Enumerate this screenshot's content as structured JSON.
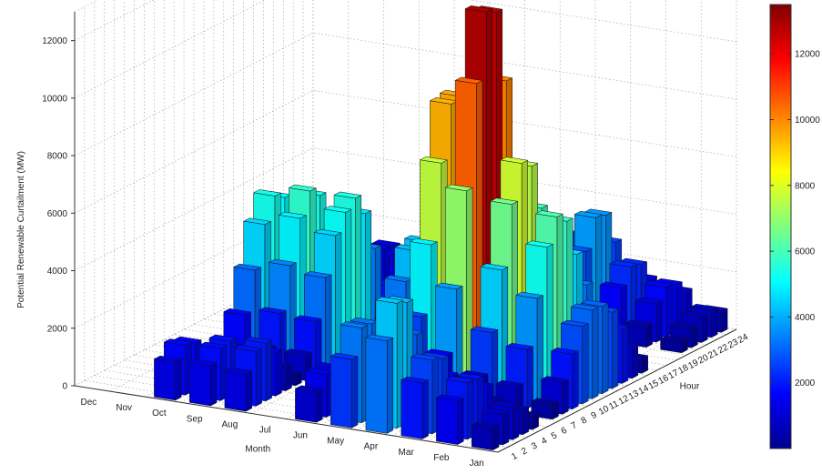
{
  "chart_data": {
    "type": "bar3d",
    "zlabel": "Potential Renewable Curtailment (MW)",
    "xlabel": "Month",
    "ylabel": "Hour",
    "months": [
      "Jan",
      "Feb",
      "Mar",
      "Apr",
      "May",
      "Jun",
      "Jul",
      "Aug",
      "Sep",
      "Oct",
      "Nov",
      "Dec"
    ],
    "hours": [
      "1",
      "2",
      "3",
      "4",
      "5",
      "6",
      "7",
      "8",
      "9",
      "10",
      "11",
      "12",
      "13",
      "14",
      "15",
      "16",
      "17",
      "18",
      "19",
      "20",
      "21",
      "22",
      "23",
      "24"
    ],
    "zticks": [
      "0",
      "2000",
      "4000",
      "6000",
      "8000",
      "10000",
      "12000"
    ],
    "zlim": [
      0,
      13000
    ],
    "colorbar": {
      "ticks": [
        "2000",
        "4000",
        "6000",
        "8000",
        "10000",
        "12000"
      ],
      "range": [
        0,
        13500
      ],
      "colormap": "jet"
    },
    "peaks": [
      {
        "month": "Jan",
        "peak": 3700
      },
      {
        "month": "Feb",
        "peak": 6800
      },
      {
        "month": "Mar",
        "peak": 8200
      },
      {
        "month": "Apr",
        "peak": 13200
      },
      {
        "month": "May",
        "peak": 9800
      },
      {
        "month": "Jun",
        "peak": 4500
      },
      {
        "month": "Jul",
        "peak": 0
      },
      {
        "month": "Aug",
        "peak": 6400
      },
      {
        "month": "Sep",
        "peak": 6500
      },
      {
        "month": "Oct",
        "peak": 5700
      },
      {
        "month": "Nov",
        "peak": 0
      },
      {
        "month": "Dec",
        "peak": 0
      }
    ],
    "grid": true
  }
}
